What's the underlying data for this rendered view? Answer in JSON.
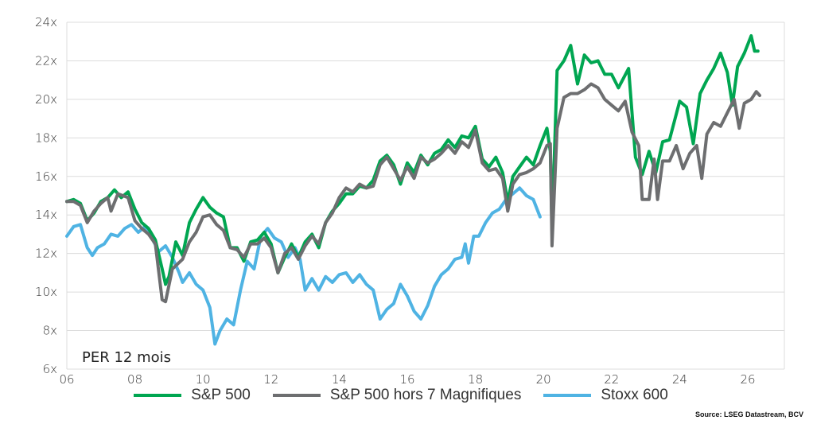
{
  "chart_data": {
    "type": "line",
    "title": "",
    "annotation": "PER 12 mois",
    "xlabel": "",
    "ylabel": "",
    "ylim": [
      6,
      24
    ],
    "xlim": [
      2006,
      2027.1
    ],
    "grid": true,
    "legend_position": "bottom",
    "yticks": [
      6,
      8,
      10,
      12,
      14,
      16,
      18,
      20,
      22,
      24
    ],
    "ytick_labels": [
      "6x",
      "8x",
      "10x",
      "12x",
      "14x",
      "16x",
      "18x",
      "20x",
      "22x",
      "24x"
    ],
    "xticks": [
      2006,
      2008,
      2010,
      2012,
      2014,
      2016,
      2018,
      2020,
      2022,
      2024,
      2026
    ],
    "xtick_labels": [
      "06",
      "08",
      "10",
      "12",
      "14",
      "16",
      "18",
      "20",
      "22",
      "24",
      "26"
    ],
    "series": [
      {
        "name": "S&P 500",
        "color": "#00a651",
        "points": [
          [
            2006.0,
            14.7
          ],
          [
            2006.2,
            14.8
          ],
          [
            2006.4,
            14.6
          ],
          [
            2006.6,
            13.7
          ],
          [
            2006.8,
            14.1
          ],
          [
            2007.0,
            14.7
          ],
          [
            2007.2,
            14.9
          ],
          [
            2007.4,
            15.3
          ],
          [
            2007.6,
            14.9
          ],
          [
            2007.8,
            15.2
          ],
          [
            2008.0,
            14.3
          ],
          [
            2008.2,
            13.6
          ],
          [
            2008.4,
            13.3
          ],
          [
            2008.6,
            12.7
          ],
          [
            2008.8,
            11.2
          ],
          [
            2008.9,
            10.4
          ],
          [
            2009.0,
            10.8
          ],
          [
            2009.2,
            12.6
          ],
          [
            2009.4,
            11.9
          ],
          [
            2009.6,
            13.6
          ],
          [
            2009.8,
            14.3
          ],
          [
            2010.0,
            14.9
          ],
          [
            2010.2,
            14.4
          ],
          [
            2010.4,
            14.1
          ],
          [
            2010.6,
            13.9
          ],
          [
            2010.8,
            12.3
          ],
          [
            2011.0,
            12.3
          ],
          [
            2011.2,
            11.6
          ],
          [
            2011.4,
            12.6
          ],
          [
            2011.6,
            12.7
          ],
          [
            2011.8,
            13.1
          ],
          [
            2012.0,
            12.5
          ],
          [
            2012.2,
            11.0
          ],
          [
            2012.4,
            11.8
          ],
          [
            2012.6,
            12.5
          ],
          [
            2012.8,
            11.8
          ],
          [
            2013.0,
            12.6
          ],
          [
            2013.2,
            13.0
          ],
          [
            2013.4,
            12.3
          ],
          [
            2013.6,
            13.6
          ],
          [
            2013.8,
            14.2
          ],
          [
            2014.0,
            14.6
          ],
          [
            2014.2,
            15.1
          ],
          [
            2014.4,
            15.1
          ],
          [
            2014.6,
            15.5
          ],
          [
            2014.8,
            15.4
          ],
          [
            2015.0,
            15.8
          ],
          [
            2015.2,
            16.8
          ],
          [
            2015.4,
            17.1
          ],
          [
            2015.6,
            16.6
          ],
          [
            2015.8,
            15.6
          ],
          [
            2016.0,
            16.7
          ],
          [
            2016.2,
            16.2
          ],
          [
            2016.4,
            17.1
          ],
          [
            2016.6,
            16.6
          ],
          [
            2016.8,
            17.2
          ],
          [
            2017.0,
            17.4
          ],
          [
            2017.2,
            17.9
          ],
          [
            2017.4,
            17.5
          ],
          [
            2017.6,
            18.1
          ],
          [
            2017.8,
            18.0
          ],
          [
            2018.0,
            18.6
          ],
          [
            2018.2,
            16.9
          ],
          [
            2018.4,
            16.5
          ],
          [
            2018.6,
            17.0
          ],
          [
            2018.8,
            16.2
          ],
          [
            2018.95,
            14.7
          ],
          [
            2019.1,
            16.0
          ],
          [
            2019.3,
            16.5
          ],
          [
            2019.5,
            17.0
          ],
          [
            2019.7,
            16.6
          ],
          [
            2019.9,
            17.6
          ],
          [
            2020.1,
            18.5
          ],
          [
            2020.2,
            17.3
          ],
          [
            2020.25,
            13.2
          ],
          [
            2020.4,
            21.5
          ],
          [
            2020.6,
            22.0
          ],
          [
            2020.8,
            22.8
          ],
          [
            2021.0,
            20.8
          ],
          [
            2021.2,
            22.3
          ],
          [
            2021.4,
            21.9
          ],
          [
            2021.6,
            22.0
          ],
          [
            2021.8,
            21.3
          ],
          [
            2022.0,
            21.3
          ],
          [
            2022.2,
            20.6
          ],
          [
            2022.5,
            21.6
          ],
          [
            2022.7,
            17.0
          ],
          [
            2022.9,
            16.1
          ],
          [
            2023.1,
            17.3
          ],
          [
            2023.3,
            16.2
          ],
          [
            2023.5,
            17.8
          ],
          [
            2023.7,
            17.9
          ],
          [
            2024.0,
            19.9
          ],
          [
            2024.2,
            19.6
          ],
          [
            2024.4,
            17.7
          ],
          [
            2024.6,
            20.3
          ],
          [
            2024.8,
            21.0
          ],
          [
            2025.0,
            21.6
          ],
          [
            2025.2,
            22.4
          ],
          [
            2025.4,
            21.4
          ],
          [
            2025.55,
            19.7
          ],
          [
            2025.7,
            21.7
          ],
          [
            2025.9,
            22.4
          ],
          [
            2026.1,
            23.3
          ],
          [
            2026.2,
            22.5
          ],
          [
            2026.3,
            22.5
          ]
        ]
      },
      {
        "name": "S&P 500 hors 7 Magnifiques",
        "color": "#6d6e70",
        "points": [
          [
            2006.0,
            14.7
          ],
          [
            2006.2,
            14.7
          ],
          [
            2006.4,
            14.5
          ],
          [
            2006.6,
            13.6
          ],
          [
            2006.8,
            14.2
          ],
          [
            2007.0,
            14.6
          ],
          [
            2007.2,
            14.9
          ],
          [
            2007.3,
            14.2
          ],
          [
            2007.5,
            15.1
          ],
          [
            2007.8,
            14.9
          ],
          [
            2008.0,
            13.7
          ],
          [
            2008.2,
            13.3
          ],
          [
            2008.4,
            13.0
          ],
          [
            2008.6,
            12.5
          ],
          [
            2008.8,
            9.6
          ],
          [
            2008.9,
            9.5
          ],
          [
            2009.1,
            11.2
          ],
          [
            2009.4,
            11.7
          ],
          [
            2009.6,
            12.6
          ],
          [
            2009.8,
            13.1
          ],
          [
            2010.0,
            13.9
          ],
          [
            2010.2,
            14.0
          ],
          [
            2010.4,
            13.5
          ],
          [
            2010.6,
            13.2
          ],
          [
            2010.8,
            12.3
          ],
          [
            2011.0,
            12.2
          ],
          [
            2011.2,
            11.8
          ],
          [
            2011.4,
            12.5
          ],
          [
            2011.6,
            12.5
          ],
          [
            2011.8,
            12.8
          ],
          [
            2012.0,
            12.3
          ],
          [
            2012.2,
            11.0
          ],
          [
            2012.4,
            12.0
          ],
          [
            2012.6,
            12.3
          ],
          [
            2012.8,
            11.7
          ],
          [
            2013.0,
            12.4
          ],
          [
            2013.2,
            12.9
          ],
          [
            2013.4,
            12.5
          ],
          [
            2013.6,
            13.6
          ],
          [
            2013.8,
            14.1
          ],
          [
            2014.0,
            14.9
          ],
          [
            2014.2,
            15.4
          ],
          [
            2014.4,
            15.2
          ],
          [
            2014.6,
            15.6
          ],
          [
            2014.8,
            15.4
          ],
          [
            2015.0,
            15.5
          ],
          [
            2015.2,
            16.6
          ],
          [
            2015.4,
            17.0
          ],
          [
            2015.6,
            16.4
          ],
          [
            2015.8,
            15.8
          ],
          [
            2016.0,
            16.5
          ],
          [
            2016.2,
            15.9
          ],
          [
            2016.4,
            17.0
          ],
          [
            2016.6,
            16.7
          ],
          [
            2016.8,
            16.9
          ],
          [
            2017.0,
            17.2
          ],
          [
            2017.2,
            17.6
          ],
          [
            2017.4,
            17.2
          ],
          [
            2017.6,
            17.8
          ],
          [
            2017.8,
            17.5
          ],
          [
            2018.0,
            18.4
          ],
          [
            2018.2,
            16.7
          ],
          [
            2018.4,
            16.3
          ],
          [
            2018.6,
            16.4
          ],
          [
            2018.8,
            15.9
          ],
          [
            2018.95,
            14.2
          ],
          [
            2019.1,
            15.6
          ],
          [
            2019.3,
            16.1
          ],
          [
            2019.5,
            16.2
          ],
          [
            2019.7,
            16.4
          ],
          [
            2019.9,
            16.7
          ],
          [
            2020.1,
            17.6
          ],
          [
            2020.2,
            17.7
          ],
          [
            2020.25,
            12.4
          ],
          [
            2020.4,
            18.5
          ],
          [
            2020.6,
            20.1
          ],
          [
            2020.8,
            20.3
          ],
          [
            2021.0,
            20.3
          ],
          [
            2021.2,
            20.5
          ],
          [
            2021.4,
            20.8
          ],
          [
            2021.6,
            20.6
          ],
          [
            2021.8,
            20.0
          ],
          [
            2022.0,
            19.7
          ],
          [
            2022.2,
            19.4
          ],
          [
            2022.4,
            19.9
          ],
          [
            2022.6,
            18.3
          ],
          [
            2022.8,
            17.6
          ],
          [
            2022.9,
            14.8
          ],
          [
            2023.1,
            14.8
          ],
          [
            2023.25,
            16.9
          ],
          [
            2023.35,
            14.8
          ],
          [
            2023.5,
            16.8
          ],
          [
            2023.7,
            16.8
          ],
          [
            2023.9,
            17.6
          ],
          [
            2024.1,
            16.4
          ],
          [
            2024.3,
            17.2
          ],
          [
            2024.5,
            17.6
          ],
          [
            2024.65,
            15.9
          ],
          [
            2024.8,
            18.2
          ],
          [
            2025.0,
            18.8
          ],
          [
            2025.2,
            18.6
          ],
          [
            2025.4,
            19.3
          ],
          [
            2025.6,
            20.0
          ],
          [
            2025.75,
            18.5
          ],
          [
            2025.9,
            19.8
          ],
          [
            2026.1,
            20.0
          ],
          [
            2026.25,
            20.4
          ],
          [
            2026.35,
            20.2
          ]
        ]
      },
      {
        "name": "Stoxx 600",
        "color": "#4fb3e3",
        "points": [
          [
            2006.0,
            12.9
          ],
          [
            2006.2,
            13.4
          ],
          [
            2006.4,
            13.5
          ],
          [
            2006.6,
            12.3
          ],
          [
            2006.75,
            11.9
          ],
          [
            2006.9,
            12.3
          ],
          [
            2007.1,
            12.5
          ],
          [
            2007.3,
            13.0
          ],
          [
            2007.5,
            12.9
          ],
          [
            2007.7,
            13.3
          ],
          [
            2007.9,
            13.5
          ],
          [
            2008.1,
            13.1
          ],
          [
            2008.3,
            13.4
          ],
          [
            2008.5,
            12.8
          ],
          [
            2008.7,
            12.1
          ],
          [
            2008.9,
            12.4
          ],
          [
            2009.1,
            11.8
          ],
          [
            2009.3,
            11.0
          ],
          [
            2009.4,
            10.5
          ],
          [
            2009.6,
            11.0
          ],
          [
            2009.8,
            10.4
          ],
          [
            2010.0,
            10.1
          ],
          [
            2010.2,
            9.2
          ],
          [
            2010.35,
            7.3
          ],
          [
            2010.5,
            8.0
          ],
          [
            2010.7,
            8.6
          ],
          [
            2010.9,
            8.3
          ],
          [
            2011.1,
            10.1
          ],
          [
            2011.3,
            11.6
          ],
          [
            2011.5,
            11.2
          ],
          [
            2011.7,
            12.9
          ],
          [
            2011.9,
            13.3
          ],
          [
            2012.1,
            12.8
          ],
          [
            2012.3,
            12.6
          ],
          [
            2012.5,
            11.8
          ],
          [
            2012.7,
            12.3
          ],
          [
            2012.85,
            11.7
          ],
          [
            2013.0,
            10.1
          ],
          [
            2013.2,
            10.7
          ],
          [
            2013.4,
            10.1
          ],
          [
            2013.6,
            10.8
          ],
          [
            2013.8,
            10.5
          ],
          [
            2014.0,
            10.9
          ],
          [
            2014.2,
            11.0
          ],
          [
            2014.4,
            10.5
          ],
          [
            2014.6,
            10.9
          ],
          [
            2014.8,
            10.4
          ],
          [
            2015.0,
            10.1
          ],
          [
            2015.2,
            8.6
          ],
          [
            2015.4,
            9.1
          ],
          [
            2015.6,
            9.4
          ],
          [
            2015.8,
            10.4
          ],
          [
            2016.0,
            9.8
          ],
          [
            2016.2,
            9.0
          ],
          [
            2016.4,
            8.6
          ],
          [
            2016.6,
            9.3
          ],
          [
            2016.8,
            10.3
          ],
          [
            2017.0,
            10.9
          ],
          [
            2017.2,
            11.2
          ],
          [
            2017.4,
            11.7
          ],
          [
            2017.6,
            11.8
          ],
          [
            2017.7,
            12.5
          ],
          [
            2017.8,
            11.5
          ],
          [
            2017.95,
            12.9
          ],
          [
            2018.1,
            12.9
          ],
          [
            2018.3,
            13.6
          ],
          [
            2018.5,
            14.1
          ],
          [
            2018.7,
            14.3
          ],
          [
            2018.9,
            14.8
          ],
          [
            2019.1,
            15.1
          ],
          [
            2019.3,
            15.4
          ],
          [
            2019.5,
            15.0
          ],
          [
            2019.7,
            14.8
          ],
          [
            2019.9,
            13.9
          ]
        ]
      }
    ]
  },
  "annotation_label": "PER 12 mois",
  "legend": [
    {
      "label": "S&P 500",
      "color": "#00a651"
    },
    {
      "label": "S&P 500 hors 7 Magnifiques",
      "color": "#6d6e70"
    },
    {
      "label": "Stoxx 600",
      "color": "#4fb3e3"
    }
  ],
  "source": "Source: LSEG Datastream, BCV"
}
